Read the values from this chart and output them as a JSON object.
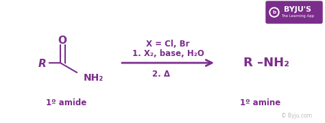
{
  "bg_color": "#ffffff",
  "purple": "#7B2D8B",
  "byju_box_color": "#7B2D8B",
  "byju_text": "BYJU'S",
  "byju_subtext": "The Learning App",
  "watermark": "© Byju.com",
  "label_1o_amide": "1º amide",
  "label_1o_amine": "1º amine",
  "arrow_above_1": "X = Cl, Br",
  "arrow_above_2": "1. X₂, base, H₂O",
  "arrow_below": "2. Δ",
  "reactant_R": "R",
  "reactant_NH2": "NH₂",
  "reactant_O": "O",
  "product_label": "R –NH₂",
  "fig_width": 4.74,
  "fig_height": 1.8,
  "dpi": 100
}
